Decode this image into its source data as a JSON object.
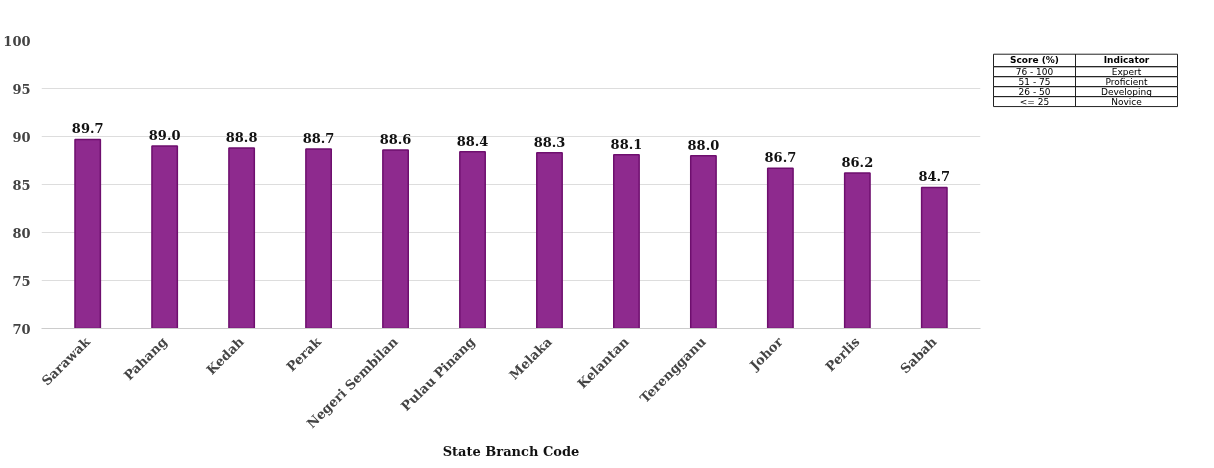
{
  "chart_data": {
    "type": "bar",
    "xlabel": "State Branch Code",
    "categories": [
      "Sarawak",
      "Pahang",
      "Kedah",
      "Perak",
      "Negeri Sembilan",
      "Pulau Pinang",
      "Melaka",
      "Kelantan",
      "Terengganu",
      "Johor",
      "Perlis",
      "Sabah"
    ],
    "values": [
      89.7,
      89.0,
      88.8,
      88.7,
      88.6,
      88.4,
      88.3,
      88.1,
      88.0,
      86.7,
      86.2,
      84.7
    ],
    "value_labels": [
      "89.7",
      "89.0",
      "88.8",
      "88.7",
      "88.6",
      "88.4",
      "88.3",
      "88.1",
      "88.0",
      "86.7",
      "86.2",
      "84.7"
    ],
    "color": "#8e2a8e",
    "ylim": [
      70,
      100
    ],
    "yticks": [
      70,
      75,
      80,
      85,
      90,
      95,
      100
    ],
    "grid": "y",
    "annotations": [
      "Score (%)",
      "Indicator",
      "76 - 100",
      "Expert",
      "51 - 75",
      "Proficient",
      "26 - 50",
      "Developing",
      "<= 25",
      "Novice"
    ]
  }
}
